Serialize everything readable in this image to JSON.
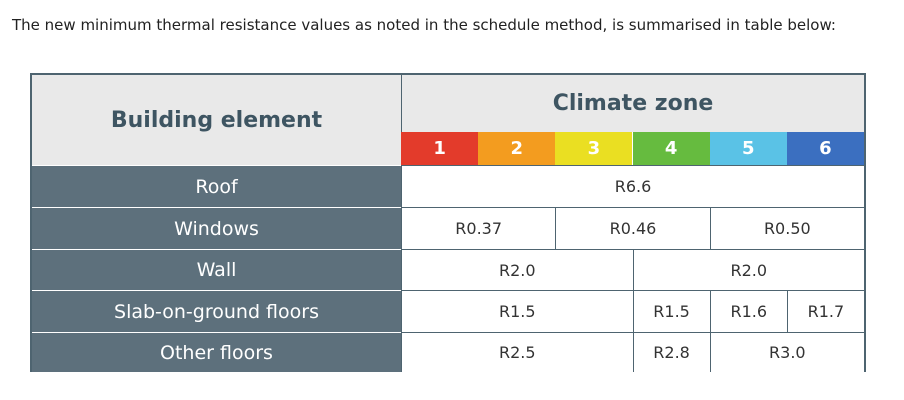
{
  "intro": "The new minimum thermal resistance values as noted in the schedule method, is summarised in table below:",
  "table": {
    "header": {
      "building_element": "Building element",
      "climate_zone": "Climate zone",
      "zones": [
        "1",
        "2",
        "3",
        "4",
        "5",
        "6"
      ]
    },
    "rows": [
      {
        "label": "Roof",
        "cells": [
          "R6.6"
        ]
      },
      {
        "label": "Windows",
        "cells": [
          "R0.37",
          "R0.46",
          "R0.50"
        ]
      },
      {
        "label": "Wall",
        "cells": [
          "R2.0",
          "R2.0"
        ]
      },
      {
        "label": "Slab-on-ground floors",
        "cells": [
          "R1.5",
          "R1.5",
          "R1.6",
          "R1.7"
        ]
      },
      {
        "label": "Other floors",
        "cells": [
          "R2.5",
          "R2.8",
          "R3.0"
        ]
      }
    ]
  }
}
